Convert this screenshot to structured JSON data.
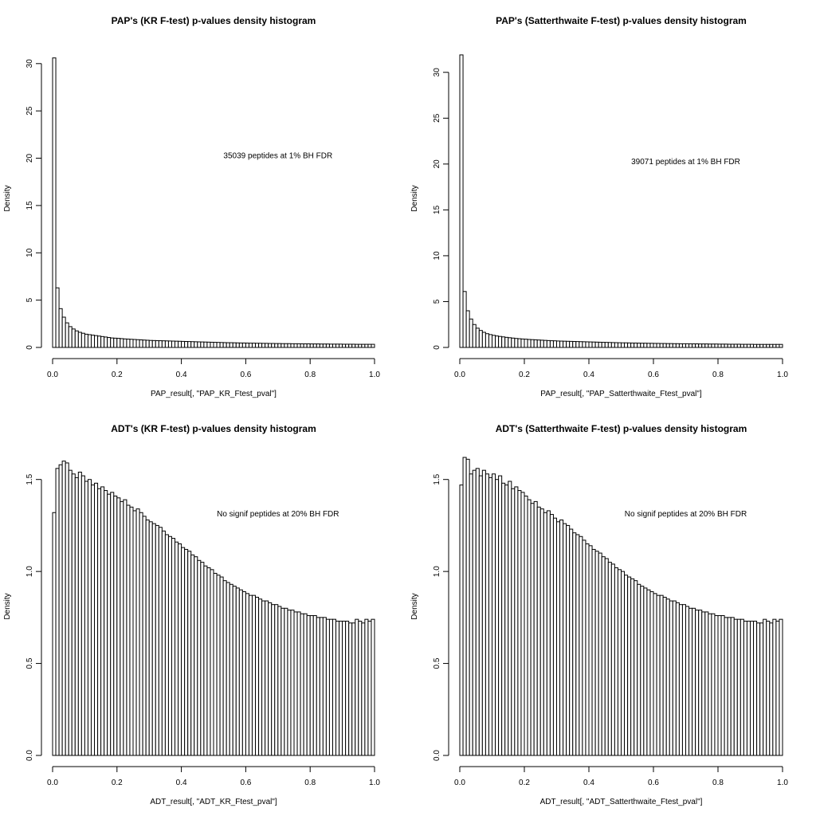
{
  "chart_data": [
    {
      "type": "bar",
      "title": "PAP's (KR F-test) p-values density histogram",
      "xlabel": "PAP_result[, \"PAP_KR_Ftest_pval\"]",
      "ylabel": "Density",
      "xlim": [
        0,
        1
      ],
      "ylim": [
        0,
        31.5
      ],
      "xticks": [
        0,
        0.2,
        0.4,
        0.6,
        0.8,
        1
      ],
      "xtick_labels": [
        "0.0",
        "0.2",
        "0.4",
        "0.6",
        "0.8",
        "1.0"
      ],
      "yticks": [
        0,
        5,
        10,
        15,
        20,
        25,
        30
      ],
      "ytick_labels": [
        "0",
        "5",
        "10",
        "15",
        "20",
        "25",
        "30"
      ],
      "annotation": "35039 peptides at 1% BH FDR",
      "annotation_at": [
        0.7,
        20
      ],
      "bin_width": 0.01,
      "values": [
        30.6,
        6.3,
        4.1,
        3.2,
        2.6,
        2.2,
        1.95,
        1.75,
        1.6,
        1.5,
        1.4,
        1.35,
        1.3,
        1.25,
        1.2,
        1.15,
        1.1,
        1.05,
        1.0,
        0.98,
        0.96,
        0.93,
        0.9,
        0.88,
        0.86,
        0.84,
        0.82,
        0.8,
        0.78,
        0.76,
        0.74,
        0.73,
        0.72,
        0.71,
        0.7,
        0.69,
        0.68,
        0.67,
        0.66,
        0.65,
        0.64,
        0.63,
        0.62,
        0.61,
        0.6,
        0.59,
        0.58,
        0.57,
        0.56,
        0.55,
        0.54,
        0.53,
        0.52,
        0.51,
        0.5,
        0.5,
        0.49,
        0.48,
        0.47,
        0.47,
        0.46,
        0.45,
        0.45,
        0.44,
        0.44,
        0.43,
        0.43,
        0.42,
        0.42,
        0.41,
        0.41,
        0.4,
        0.4,
        0.4,
        0.39,
        0.39,
        0.39,
        0.38,
        0.38,
        0.38,
        0.37,
        0.37,
        0.37,
        0.36,
        0.36,
        0.36,
        0.35,
        0.35,
        0.35,
        0.35,
        0.34,
        0.34,
        0.34,
        0.34,
        0.33,
        0.33,
        0.33,
        0.33,
        0.33,
        0.33
      ]
    },
    {
      "type": "bar",
      "title": "PAP's (Satterthwaite F-test) p-values density histogram",
      "xlabel": "PAP_result[, \"PAP_Satterthwaite_Ftest_pval\"]",
      "ylabel": "Density",
      "xlim": [
        0,
        1
      ],
      "ylim": [
        0,
        32.5
      ],
      "xticks": [
        0,
        0.2,
        0.4,
        0.6,
        0.8,
        1
      ],
      "xtick_labels": [
        "0.0",
        "0.2",
        "0.4",
        "0.6",
        "0.8",
        "1.0"
      ],
      "yticks": [
        0,
        5,
        10,
        15,
        20,
        25,
        30
      ],
      "ytick_labels": [
        "0",
        "5",
        "10",
        "15",
        "20",
        "25",
        "30"
      ],
      "annotation": "39071 peptides at 1% BH FDR",
      "annotation_at": [
        0.7,
        20
      ],
      "bin_width": 0.01,
      "values": [
        31.9,
        6.1,
        4.0,
        3.1,
        2.5,
        2.1,
        1.85,
        1.65,
        1.5,
        1.4,
        1.32,
        1.25,
        1.2,
        1.15,
        1.1,
        1.06,
        1.02,
        0.98,
        0.95,
        0.92,
        0.9,
        0.87,
        0.85,
        0.83,
        0.81,
        0.79,
        0.77,
        0.75,
        0.73,
        0.72,
        0.7,
        0.69,
        0.68,
        0.67,
        0.66,
        0.65,
        0.64,
        0.63,
        0.62,
        0.61,
        0.6,
        0.59,
        0.58,
        0.57,
        0.56,
        0.55,
        0.54,
        0.53,
        0.52,
        0.51,
        0.5,
        0.5,
        0.49,
        0.48,
        0.48,
        0.47,
        0.46,
        0.46,
        0.45,
        0.45,
        0.44,
        0.44,
        0.43,
        0.43,
        0.42,
        0.42,
        0.41,
        0.41,
        0.4,
        0.4,
        0.4,
        0.39,
        0.39,
        0.39,
        0.38,
        0.38,
        0.38,
        0.37,
        0.37,
        0.37,
        0.36,
        0.36,
        0.36,
        0.35,
        0.35,
        0.35,
        0.35,
        0.34,
        0.34,
        0.34,
        0.34,
        0.33,
        0.33,
        0.33,
        0.33,
        0.33,
        0.33,
        0.33,
        0.33,
        0.33
      ]
    },
    {
      "type": "bar",
      "title": "ADT's (KR F-test) p-values density histogram",
      "xlabel": "ADT_result[, \"ADT_KR_Ftest_pval\"]",
      "ylabel": "Density",
      "xlim": [
        0,
        1
      ],
      "ylim": [
        0,
        1.62
      ],
      "xticks": [
        0,
        0.2,
        0.4,
        0.6,
        0.8,
        1
      ],
      "xtick_labels": [
        "0.0",
        "0.2",
        "0.4",
        "0.6",
        "0.8",
        "1.0"
      ],
      "yticks": [
        0,
        0.5,
        1,
        1.5
      ],
      "ytick_labels": [
        "0.0",
        "0.5",
        "1.0",
        "1.5"
      ],
      "annotation": "No signif peptides at 20% BH FDR",
      "annotation_at": [
        0.7,
        1.3
      ],
      "bin_width": 0.01,
      "values": [
        1.32,
        1.56,
        1.58,
        1.6,
        1.59,
        1.55,
        1.53,
        1.51,
        1.54,
        1.52,
        1.49,
        1.5,
        1.47,
        1.48,
        1.45,
        1.46,
        1.44,
        1.42,
        1.43,
        1.41,
        1.4,
        1.38,
        1.39,
        1.36,
        1.35,
        1.33,
        1.34,
        1.32,
        1.3,
        1.28,
        1.27,
        1.26,
        1.25,
        1.24,
        1.22,
        1.2,
        1.19,
        1.18,
        1.16,
        1.15,
        1.13,
        1.12,
        1.11,
        1.09,
        1.08,
        1.06,
        1.05,
        1.03,
        1.02,
        1.01,
        0.99,
        0.98,
        0.97,
        0.95,
        0.94,
        0.93,
        0.92,
        0.91,
        0.9,
        0.89,
        0.88,
        0.87,
        0.87,
        0.86,
        0.85,
        0.84,
        0.84,
        0.83,
        0.82,
        0.82,
        0.81,
        0.8,
        0.8,
        0.79,
        0.79,
        0.78,
        0.78,
        0.77,
        0.77,
        0.76,
        0.76,
        0.76,
        0.75,
        0.75,
        0.75,
        0.74,
        0.74,
        0.74,
        0.73,
        0.73,
        0.73,
        0.73,
        0.72,
        0.72,
        0.74,
        0.73,
        0.72,
        0.74,
        0.73,
        0.74
      ]
    },
    {
      "type": "bar",
      "title": "ADT's (Satterthwaite F-test) p-values density histogram",
      "xlabel": "ADT_result[, \"ADT_Satterthwaite_Ftest_pval\"]",
      "ylabel": "Density",
      "xlim": [
        0,
        1
      ],
      "ylim": [
        0,
        1.62
      ],
      "xticks": [
        0,
        0.2,
        0.4,
        0.6,
        0.8,
        1
      ],
      "xtick_labels": [
        "0.0",
        "0.2",
        "0.4",
        "0.6",
        "0.8",
        "1.0"
      ],
      "yticks": [
        0,
        0.5,
        1,
        1.5
      ],
      "ytick_labels": [
        "0.0",
        "0.5",
        "1.0",
        "1.5"
      ],
      "annotation": "No signif peptides at 20% BH FDR",
      "annotation_at": [
        0.7,
        1.3
      ],
      "bin_width": 0.01,
      "values": [
        1.47,
        1.62,
        1.61,
        1.53,
        1.55,
        1.56,
        1.52,
        1.55,
        1.53,
        1.51,
        1.53,
        1.5,
        1.52,
        1.48,
        1.47,
        1.49,
        1.45,
        1.46,
        1.44,
        1.43,
        1.41,
        1.39,
        1.37,
        1.38,
        1.35,
        1.34,
        1.32,
        1.33,
        1.31,
        1.29,
        1.27,
        1.28,
        1.26,
        1.25,
        1.23,
        1.21,
        1.2,
        1.19,
        1.17,
        1.15,
        1.14,
        1.12,
        1.11,
        1.1,
        1.08,
        1.07,
        1.05,
        1.04,
        1.02,
        1.01,
        1.0,
        0.98,
        0.97,
        0.96,
        0.95,
        0.93,
        0.92,
        0.91,
        0.9,
        0.89,
        0.88,
        0.87,
        0.87,
        0.86,
        0.85,
        0.84,
        0.84,
        0.83,
        0.82,
        0.82,
        0.81,
        0.8,
        0.8,
        0.79,
        0.79,
        0.78,
        0.78,
        0.77,
        0.77,
        0.76,
        0.76,
        0.76,
        0.75,
        0.75,
        0.75,
        0.74,
        0.74,
        0.74,
        0.73,
        0.73,
        0.73,
        0.73,
        0.72,
        0.72,
        0.74,
        0.73,
        0.72,
        0.74,
        0.73,
        0.74
      ]
    }
  ]
}
